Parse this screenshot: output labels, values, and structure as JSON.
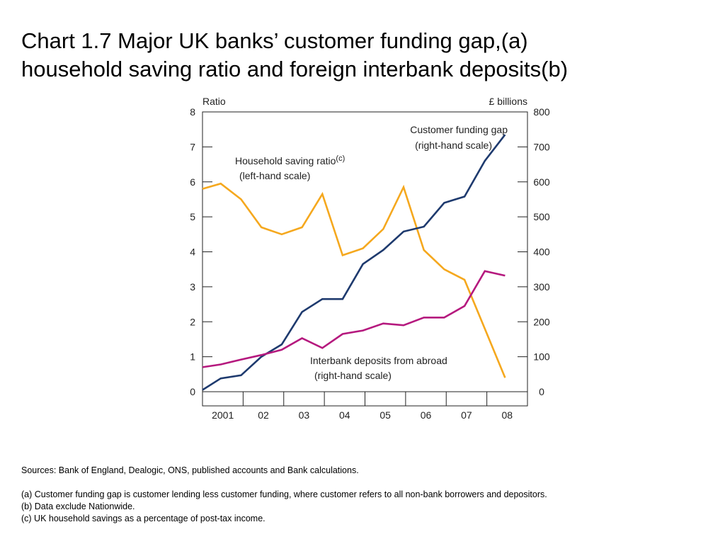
{
  "title": {
    "line1": "Chart 1.7  Major UK banks’ customer funding gap,(a)",
    "line2": "household saving ratio and foreign interbank deposits(b)"
  },
  "chart_data": {
    "type": "line",
    "left_axis": {
      "label": "Ratio",
      "ylim": [
        0,
        8
      ],
      "ticks": [
        0,
        1,
        2,
        3,
        4,
        5,
        6,
        7,
        8
      ]
    },
    "right_axis": {
      "label": "£ billions",
      "ylim": [
        0,
        800
      ],
      "ticks": [
        0,
        100,
        200,
        300,
        400,
        500,
        600,
        700,
        800
      ]
    },
    "x_axis": {
      "xlim": [
        2000.5,
        2008.5
      ],
      "tick_labels": [
        "2001",
        "02",
        "03",
        "04",
        "05",
        "06",
        "07",
        "08"
      ]
    },
    "grid": false,
    "series": [
      {
        "name": "Household saving ratio",
        "name_superscript": "(c)",
        "scale_note": "(left-hand scale)",
        "axis": "left",
        "color": "#f5a81e",
        "x": [
          2000.5,
          2000.95,
          2001.45,
          2001.95,
          2002.45,
          2002.95,
          2003.45,
          2003.95,
          2004.45,
          2004.95,
          2005.45,
          2005.95,
          2006.45,
          2006.95,
          2007.45,
          2007.95
        ],
        "values": [
          5.8,
          5.95,
          5.5,
          4.7,
          4.5,
          4.7,
          5.65,
          3.9,
          4.1,
          4.65,
          5.85,
          4.05,
          3.5,
          3.2,
          1.8,
          0.4
        ]
      },
      {
        "name": "Customer funding gap",
        "scale_note": "(right-hand scale)",
        "axis": "right",
        "color": "#1e3a6e",
        "x": [
          2000.5,
          2000.95,
          2001.45,
          2001.95,
          2002.45,
          2002.95,
          2003.45,
          2003.95,
          2004.45,
          2004.95,
          2005.45,
          2005.95,
          2006.45,
          2006.95,
          2007.45,
          2007.95
        ],
        "values": [
          5,
          38,
          47,
          100,
          135,
          228,
          265,
          265,
          365,
          405,
          458,
          472,
          540,
          558,
          660,
          735
        ]
      },
      {
        "name": "Interbank deposits from abroad",
        "scale_note": "(right-hand scale)",
        "axis": "right",
        "color": "#b5197e",
        "x": [
          2000.5,
          2000.95,
          2001.45,
          2001.95,
          2002.45,
          2002.95,
          2003.45,
          2003.95,
          2004.45,
          2004.95,
          2005.45,
          2005.95,
          2006.45,
          2006.95,
          2007.45,
          2007.95
        ],
        "values": [
          70,
          78,
          92,
          105,
          120,
          153,
          125,
          165,
          175,
          195,
          190,
          212,
          212,
          245,
          345,
          332
        ]
      }
    ]
  },
  "notes": {
    "sources": "Sources:  Bank of England, Dealogic, ONS, published accounts and Bank calculations.",
    "a": "(a)  Customer funding gap is customer lending less customer funding, where customer refers to all non-bank borrowers and depositors.",
    "b": "(b)  Data exclude Nationwide.",
    "c": "(c)  UK household savings as a percentage of post-tax income."
  }
}
